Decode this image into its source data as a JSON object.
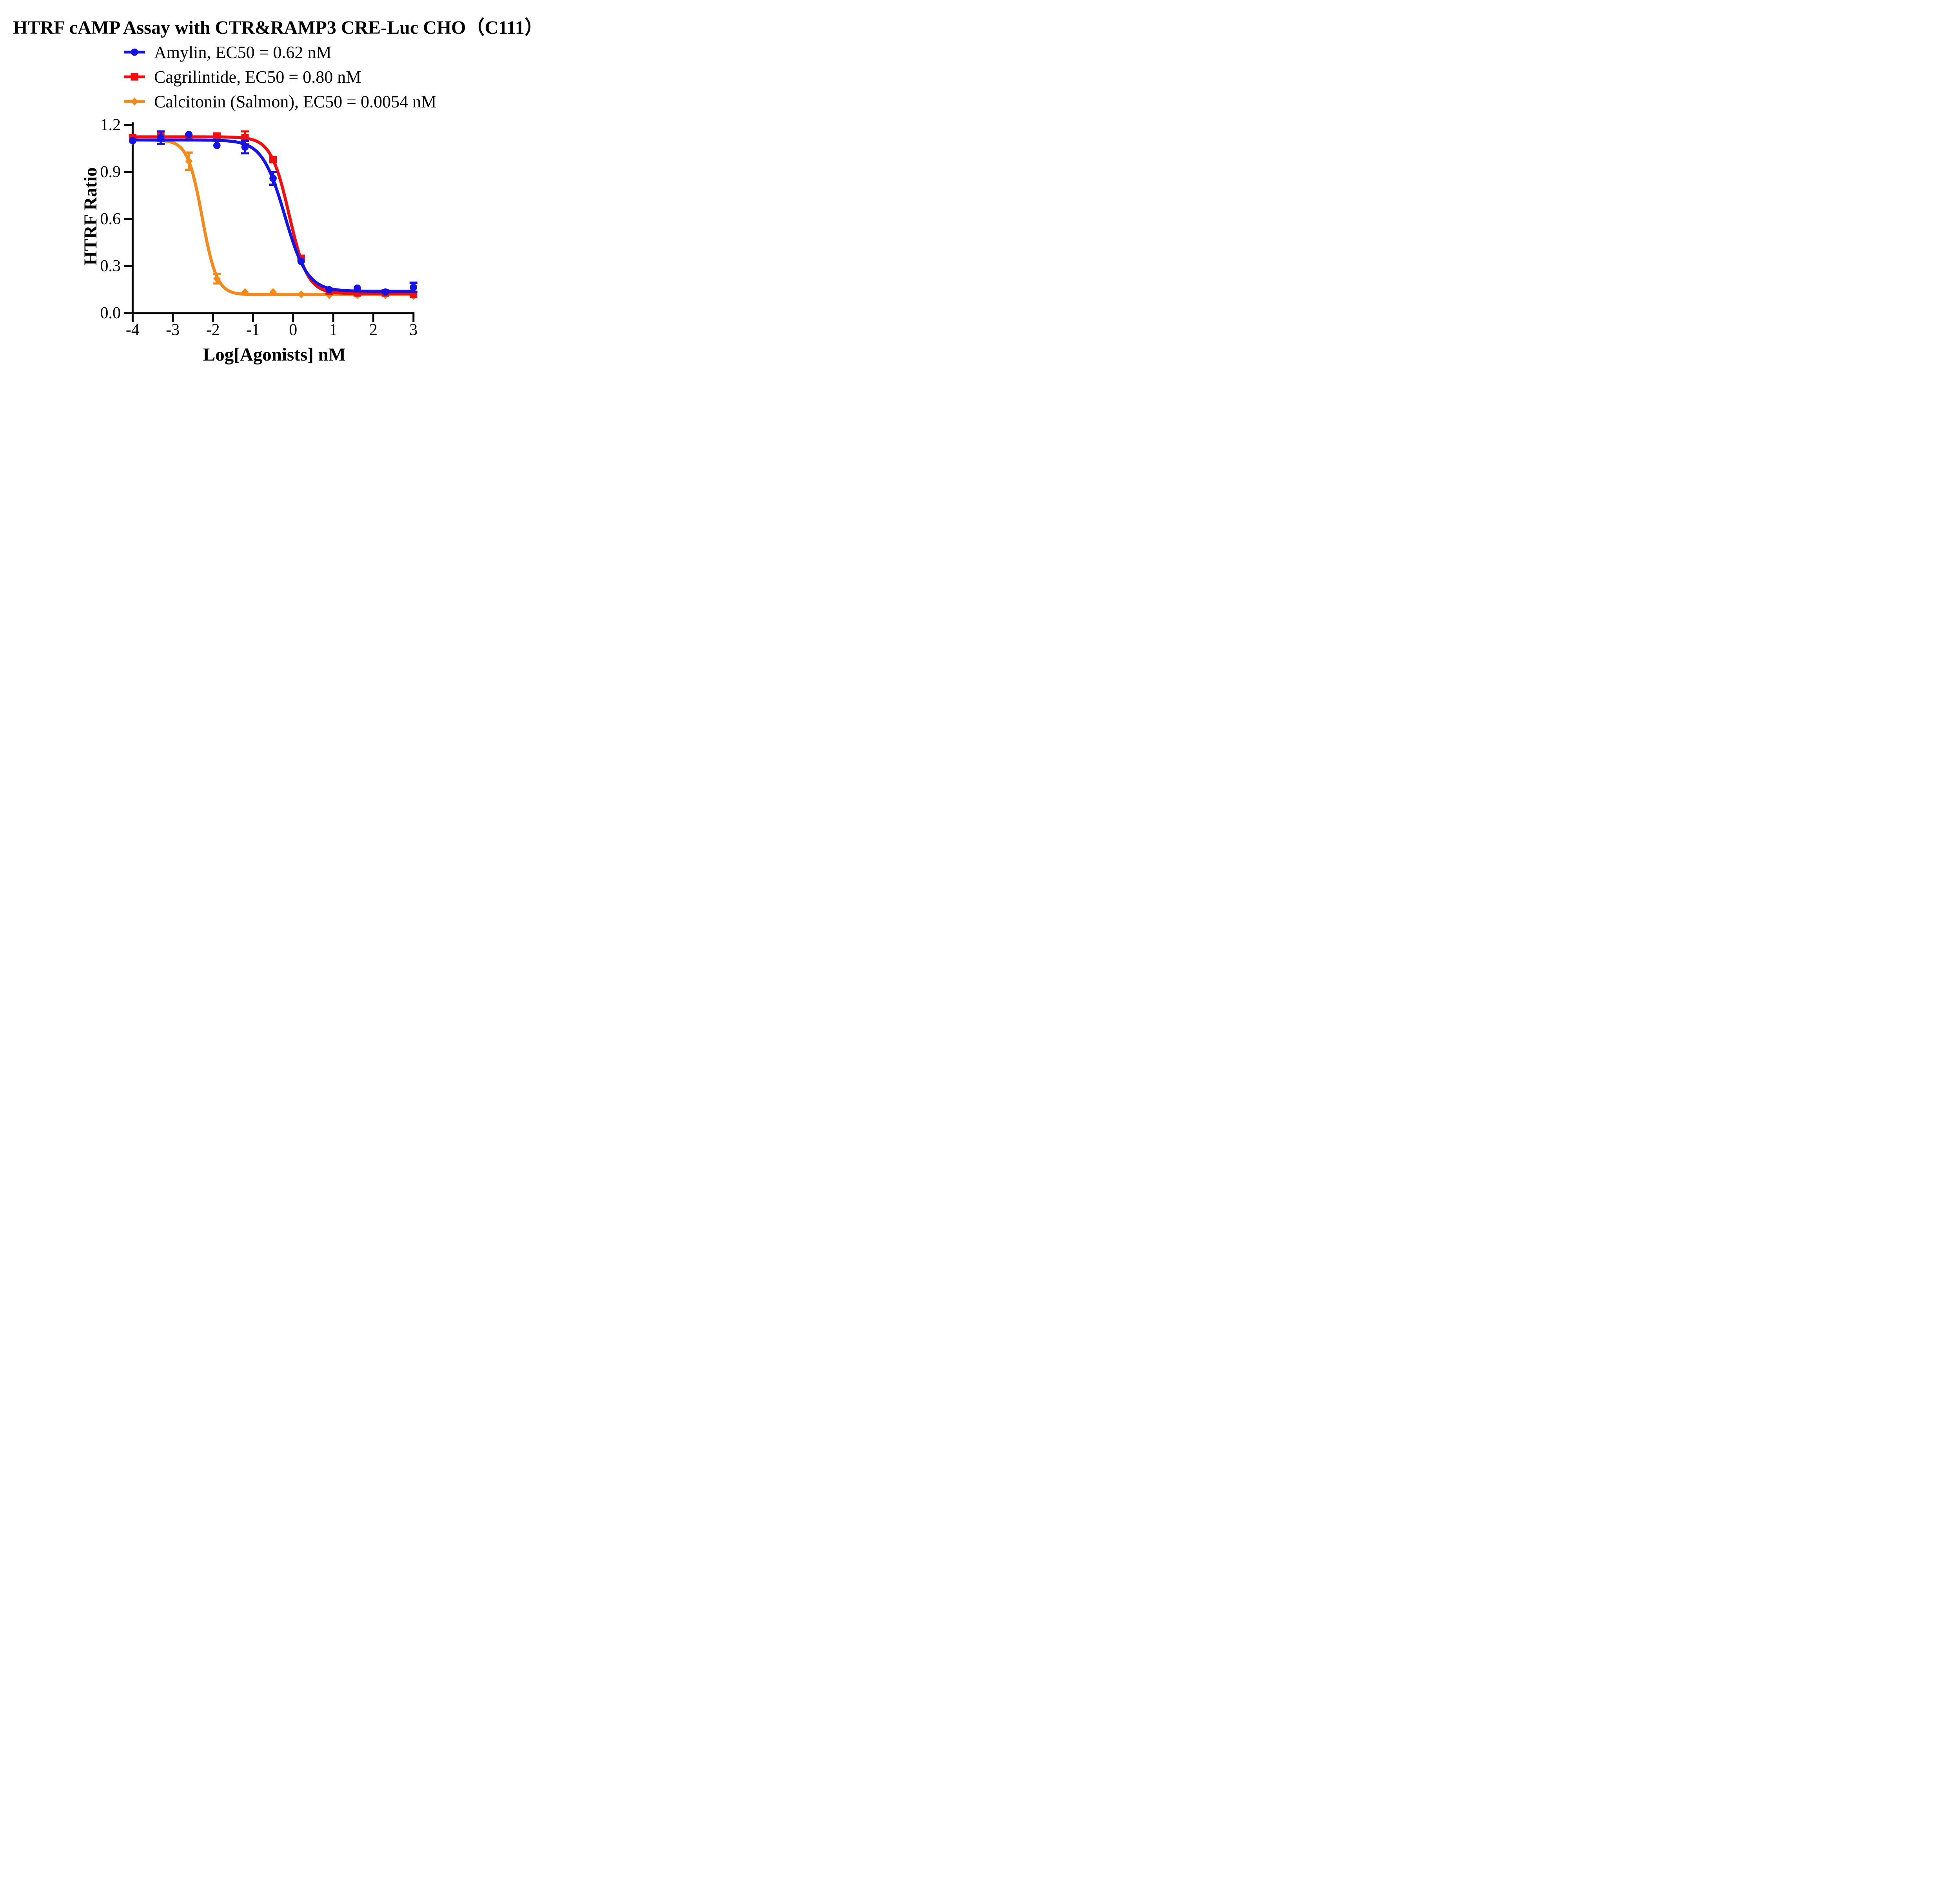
{
  "title": "HTRF cAMP Assay with CTR&RAMP3 CRE-Luc CHO（C111）",
  "legend": {
    "items": [
      {
        "label": "Amylin, EC50 = 0.62 nM",
        "color": "#1414E6",
        "marker": "circle"
      },
      {
        "label": "Cagrilintide, EC50 = 0.80 nM",
        "color": "#F50D0D",
        "marker": "square"
      },
      {
        "label": "Calcitonin (Salmon), EC50 = 0.0054 nM",
        "color": "#F7891A",
        "marker": "diamond"
      }
    ]
  },
  "chart_data": {
    "type": "line",
    "title": "HTRF cAMP Assay with CTR&RAMP3 CRE-Luc CHO（C111）",
    "xlabel": "Log[Agonists] nM",
    "ylabel": "HTRF Ratio",
    "xlim": [
      -4,
      3
    ],
    "ylim": [
      0,
      1.2
    ],
    "grid": false,
    "legend_position": "top-left above plot",
    "axis_color": "#000000",
    "x_ticks": [
      -4,
      -3,
      -2,
      -1,
      0,
      1,
      2,
      3
    ],
    "x_tick_labels": [
      "-4",
      "-3",
      "-2",
      "-1",
      "0",
      "1",
      "2",
      "3"
    ],
    "y_ticks": [
      0,
      0.3,
      0.6,
      0.9,
      1.2
    ],
    "y_tick_labels": [
      "0.0",
      "0.3",
      "0.6",
      "0.9",
      "1.2"
    ],
    "x": [
      -4,
      -3.3,
      -2.6,
      -1.9,
      -1.2,
      -0.5,
      0.2,
      0.9,
      1.6,
      2.3,
      3
    ],
    "series": [
      {
        "name": "Calcitonin (Salmon)",
        "legend_label": "Calcitonin (Salmon), EC50 = 0.0054 nM",
        "ec50_nM": 0.0054,
        "color": "#F7891A",
        "marker": "diamond",
        "values": [
          1.1,
          1.11,
          0.97,
          0.22,
          0.135,
          0.135,
          0.12,
          0.115,
          0.115,
          0.115,
          0.11
        ],
        "errors": [
          0,
          0,
          0.055,
          0.03,
          0,
          0,
          0,
          0,
          0,
          0,
          0
        ],
        "fit": {
          "top": 1.105,
          "bottom": 0.118,
          "logEC50": -2.268,
          "hill": 2.4
        }
      },
      {
        "name": "Cagrilintide",
        "legend_label": "Cagrilintide, EC50 = 0.80 nM",
        "ec50_nM": 0.8,
        "color": "#F50D0D",
        "marker": "square",
        "values": [
          1.12,
          1.13,
          1.12,
          1.13,
          1.12,
          0.98,
          0.35,
          0.14,
          0.13,
          0.13,
          0.12
        ],
        "errors": [
          0,
          0.03,
          0,
          0,
          0.04,
          0,
          0,
          0,
          0,
          0,
          0
        ],
        "fit": {
          "top": 1.125,
          "bottom": 0.125,
          "logEC50": -0.097,
          "hill": 1.9
        }
      },
      {
        "name": "Amylin",
        "legend_label": "Amylin, EC50 = 0.62 nM",
        "ec50_nM": 0.62,
        "color": "#1414E6",
        "marker": "circle",
        "values": [
          1.1,
          1.12,
          1.14,
          1.07,
          1.06,
          0.86,
          0.33,
          0.15,
          0.16,
          0.135,
          0.165
        ],
        "errors": [
          0,
          0.04,
          0,
          0,
          0.04,
          0.04,
          0,
          0,
          0,
          0,
          0.03
        ],
        "fit": {
          "top": 1.105,
          "bottom": 0.14,
          "logEC50": -0.208,
          "hill": 1.55
        }
      }
    ]
  }
}
